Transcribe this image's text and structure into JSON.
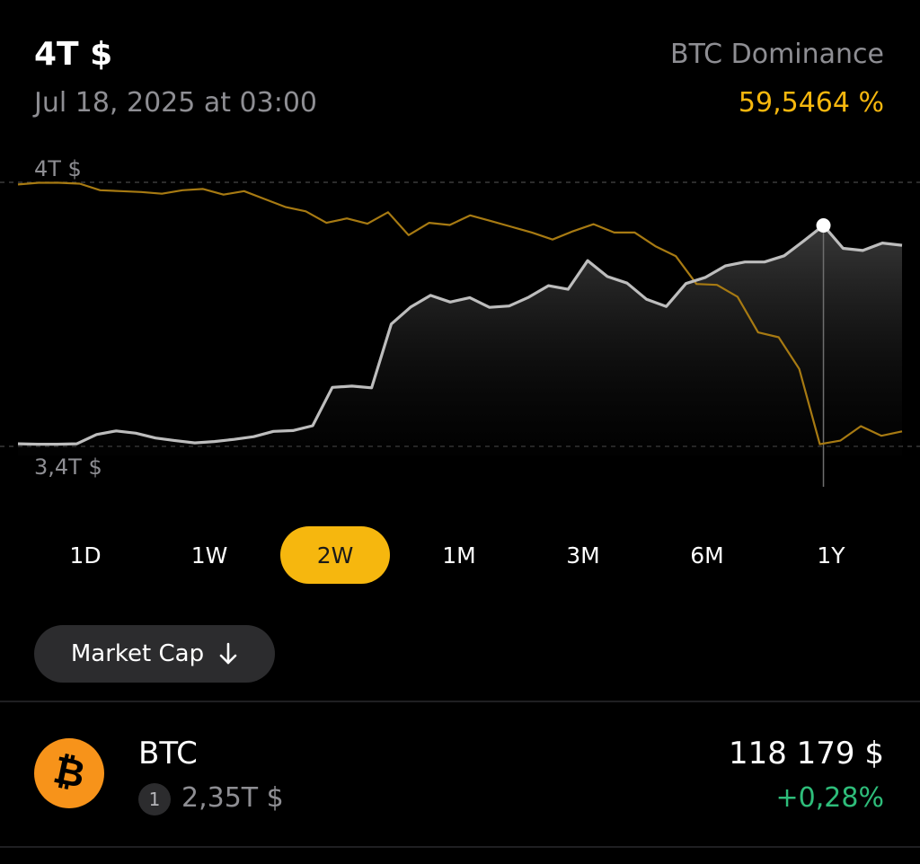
{
  "header": {
    "total_market_cap": "4T $",
    "timestamp": "Jul 18, 2025 at 03:00",
    "dominance_label": "BTC Dominance",
    "dominance_value": "59,5464 %"
  },
  "colors": {
    "accent": "#f6b70e",
    "market_cap_line": "#bdbdbd",
    "dominance_line": "#a77a12",
    "positive": "#2ebd7a",
    "bitcoin": "#f7931a"
  },
  "chart_data": {
    "type": "line",
    "y_axis_labels": {
      "top": "4T $",
      "bottom": "3,4T $"
    },
    "y_range": [
      3.4,
      4.0
    ],
    "grid": "dashed lines at top and bottom labels",
    "series": [
      {
        "values": [
          3.406,
          3.405,
          3.405,
          3.406,
          3.427,
          3.435,
          3.43,
          3.419,
          3.413,
          3.408,
          3.411,
          3.416,
          3.422,
          3.434,
          3.436,
          3.447,
          3.534,
          3.537,
          3.533,
          3.678,
          3.717,
          3.743,
          3.728,
          3.738,
          3.716,
          3.719,
          3.739,
          3.765,
          3.757,
          3.822,
          3.786,
          3.771,
          3.734,
          3.718,
          3.77,
          3.784,
          3.81,
          3.819,
          3.819,
          3.833,
          3.867,
          3.902,
          3.85,
          3.845,
          3.862,
          3.857
        ]
      },
      {
        "values": [
          3.995,
          3.999,
          3.999,
          3.997,
          3.982,
          3.98,
          3.978,
          3.974,
          3.982,
          3.985,
          3.972,
          3.98,
          3.962,
          3.944,
          3.934,
          3.908,
          3.918,
          3.906,
          3.932,
          3.88,
          3.908,
          3.903,
          3.925,
          3.912,
          3.899,
          3.886,
          3.87,
          3.889,
          3.905,
          3.886,
          3.886,
          3.855,
          3.832,
          3.769,
          3.767,
          3.74,
          3.659,
          3.648,
          3.576,
          3.405,
          3.413,
          3.446,
          3.424,
          3.434
        ]
      }
    ],
    "highlight": {
      "value": 3.902
    }
  },
  "periods": {
    "items": [
      "1D",
      "1W",
      "2W",
      "1M",
      "3M",
      "6M",
      "1Y"
    ],
    "selected_index": 2
  },
  "sort": {
    "label": "Market Cap"
  },
  "coin": {
    "symbol": "BTC",
    "rank": "1",
    "market_cap": "2,35T $",
    "price": "118 179 $",
    "change": "+0,28%",
    "icon": "bitcoin-icon"
  }
}
